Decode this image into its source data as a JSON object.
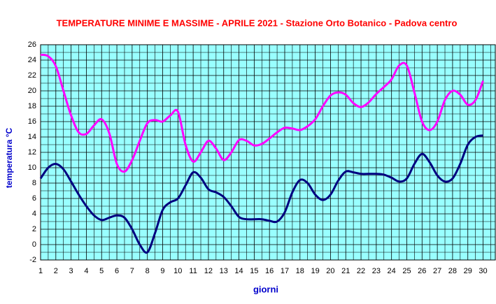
{
  "chart_data": {
    "type": "line",
    "title": "TEMPERATURE MINIME E MASSIME  - APRILE  2021 - Stazione Orto Botanico - Padova centro",
    "x_label": "giorni",
    "y_label": "temperatura °C",
    "x": [
      1,
      1.5,
      2,
      2.5,
      3,
      3.5,
      4,
      4.5,
      5,
      5.5,
      6,
      6.5,
      7,
      7.5,
      8,
      8.5,
      9,
      9.5,
      10,
      10.5,
      11,
      11.5,
      12,
      12.5,
      13,
      13.5,
      14,
      14.5,
      15,
      15.5,
      16,
      16.5,
      17,
      17.5,
      18,
      18.5,
      19,
      19.5,
      20,
      20.5,
      21,
      21.5,
      22,
      22.5,
      23,
      23.5,
      24,
      24.5,
      25,
      25.5,
      26,
      26.5,
      27,
      27.5,
      28,
      28.5,
      29,
      29.5,
      30
    ],
    "series": [
      {
        "color": "#ff00ff",
        "values": [
          24.7,
          24.5,
          23.2,
          20,
          16.8,
          14.6,
          14.4,
          15.5,
          16.3,
          14.5,
          10.5,
          9.5,
          11,
          13.5,
          15.8,
          16.2,
          16,
          16.8,
          17.3,
          13,
          10.8,
          12,
          13.5,
          12.5,
          11,
          12,
          13.6,
          13.5,
          12.9,
          13.1,
          13.8,
          14.6,
          15.2,
          15.1,
          14.9,
          15.4,
          16.3,
          18,
          19.4,
          19.8,
          19.5,
          18.4,
          17.9,
          18.5,
          19.6,
          20.5,
          21.5,
          23.3,
          23.3,
          19.8,
          16,
          14.9,
          16,
          18.8,
          20,
          19.5,
          18.2,
          18.8,
          21.3
        ]
      },
      {
        "color": "#000080",
        "values": [
          8.6,
          10,
          10.5,
          9.8,
          8.2,
          6.5,
          5,
          3.8,
          3.2,
          3.5,
          3.8,
          3.5,
          2,
          0,
          -1,
          1.5,
          4.5,
          5.5,
          6,
          7.7,
          9.4,
          8.7,
          7.2,
          6.8,
          6.2,
          5,
          3.6,
          3.3,
          3.3,
          3.3,
          3.1,
          3,
          4.2,
          6.8,
          8.4,
          8,
          6.5,
          5.8,
          6.5,
          8.3,
          9.5,
          9.4,
          9.2,
          9.2,
          9.2,
          9.1,
          8.7,
          8.2,
          8.6,
          10.5,
          11.8,
          10.7,
          9,
          8.2,
          8.6,
          10.5,
          13,
          14,
          14.2
        ]
      }
    ],
    "xlim": [
      1,
      30.8
    ],
    "xticks": [
      1,
      2,
      3,
      4,
      5,
      6,
      7,
      8,
      9,
      10,
      11,
      12,
      13,
      14,
      15,
      16,
      17,
      18,
      19,
      20,
      21,
      22,
      23,
      24,
      25,
      26,
      27,
      28,
      29,
      30
    ],
    "ylim": [
      -2,
      26
    ],
    "yticks": [
      -2,
      0,
      2,
      4,
      6,
      8,
      10,
      12,
      14,
      16,
      18,
      20,
      22,
      24,
      26
    ],
    "grid": true,
    "background": "#99ffff"
  }
}
